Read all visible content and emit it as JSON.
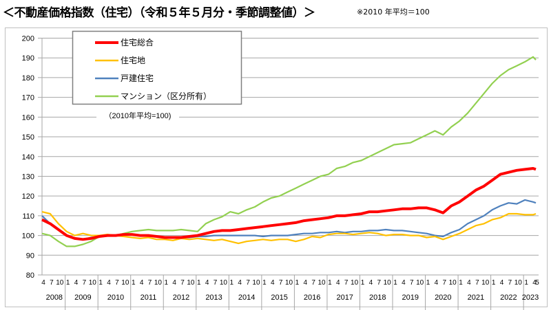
{
  "title": "＜不動産価格指数（住宅）（令和５年５月分・季節調整値）＞",
  "note": "※2010 年平均＝100",
  "chart_data": {
    "type": "line",
    "title": "不動産価格指数（住宅）（令和５年５月分・季節調整値）",
    "annotation": "（2010年平均=100)",
    "xlabel": "",
    "ylabel": "",
    "ylim": [
      80,
      200
    ],
    "yticks": [
      "80",
      "90",
      "100",
      "110",
      "120",
      "130",
      "140",
      "150",
      "160",
      "170",
      "180",
      "190",
      "200"
    ],
    "grid": true,
    "legend_placement": "top-left",
    "x_start": "2008-04",
    "x_end": "2023-05",
    "month_tick_labels": [
      "1",
      "4",
      "7",
      "10"
    ],
    "last_year_month_labels": [
      "1",
      "4",
      "5"
    ],
    "years": [
      "2008",
      "2009",
      "2010",
      "2011",
      "2012",
      "2013",
      "2014",
      "2015",
      "2016",
      "2017",
      "2018",
      "2019",
      "2020",
      "2021",
      "2022",
      "2023"
    ],
    "x": [
      "2008-04",
      "2008-07",
      "2008-10",
      "2009-01",
      "2009-04",
      "2009-07",
      "2009-10",
      "2010-01",
      "2010-04",
      "2010-07",
      "2010-10",
      "2011-01",
      "2011-04",
      "2011-07",
      "2011-10",
      "2012-01",
      "2012-04",
      "2012-07",
      "2012-10",
      "2013-01",
      "2013-04",
      "2013-07",
      "2013-10",
      "2014-01",
      "2014-04",
      "2014-07",
      "2014-10",
      "2015-01",
      "2015-04",
      "2015-07",
      "2015-10",
      "2016-01",
      "2016-04",
      "2016-07",
      "2016-10",
      "2017-01",
      "2017-04",
      "2017-07",
      "2017-10",
      "2018-01",
      "2018-04",
      "2018-07",
      "2018-10",
      "2019-01",
      "2019-04",
      "2019-07",
      "2019-10",
      "2020-01",
      "2020-04",
      "2020-07",
      "2020-10",
      "2021-01",
      "2021-04",
      "2021-07",
      "2021-10",
      "2022-01",
      "2022-04",
      "2022-07",
      "2022-10",
      "2023-01",
      "2023-04",
      "2023-05"
    ],
    "series": [
      {
        "name": "住宅総合",
        "color": "#ff0000",
        "width": 4,
        "values": [
          108,
          106,
          103,
          100,
          98.5,
          98,
          98.5,
          99.5,
          100,
          100,
          100.5,
          100.5,
          100,
          100,
          99.5,
          99,
          99,
          99,
          99.5,
          100,
          101,
          102,
          102.5,
          102.5,
          103,
          103.5,
          104,
          104.5,
          105,
          105.5,
          106,
          106.5,
          107.5,
          108,
          108.5,
          109,
          110,
          110,
          110.5,
          111,
          112,
          112,
          112.5,
          113,
          113.5,
          113.5,
          114,
          114,
          113,
          111.5,
          115,
          117,
          120,
          123,
          125,
          128,
          131,
          132,
          133,
          133.5,
          134,
          133.5
        ]
      },
      {
        "name": "住宅地",
        "color": "#ffc000",
        "width": 2.2,
        "values": [
          112,
          111,
          106,
          102,
          100,
          101,
          100,
          100,
          100.5,
          100,
          99.5,
          99,
          98.5,
          99,
          98,
          98,
          97.5,
          98.5,
          98,
          98.5,
          98,
          97.5,
          98,
          97,
          96,
          97,
          97.5,
          98,
          97.5,
          98,
          98,
          97,
          98,
          99.5,
          99,
          100.5,
          101,
          101,
          100.5,
          101,
          101.5,
          101,
          100,
          100.5,
          100.5,
          100,
          100,
          99,
          99.5,
          98,
          99.5,
          101,
          103,
          105,
          106,
          108,
          109,
          111,
          111,
          110.5,
          110.5,
          111
        ]
      },
      {
        "name": "戸建住宅",
        "color": "#4f81bd",
        "width": 2.2,
        "values": [
          110,
          106,
          103,
          100,
          98.5,
          98,
          99,
          99.5,
          100,
          100,
          100.5,
          100.5,
          100,
          100,
          99.5,
          99,
          99,
          99,
          99,
          99.5,
          99.5,
          100,
          100,
          100,
          100,
          100,
          100,
          99.5,
          100,
          100,
          100,
          100.5,
          101,
          101,
          101.5,
          101.5,
          102,
          101.5,
          102,
          102,
          102.5,
          102.5,
          103,
          102.5,
          102.5,
          102,
          101.5,
          101,
          100,
          99.5,
          101.5,
          103,
          106,
          108,
          110,
          113,
          115,
          116.5,
          116,
          118,
          117,
          116.5
        ]
      },
      {
        "name": "マンション（区分所有）",
        "color": "#92d050",
        "width": 2.2,
        "values": [
          101,
          100,
          97,
          94.5,
          94.5,
          95.5,
          97,
          99.5,
          100,
          100,
          101,
          102,
          102.5,
          103,
          102.5,
          102.5,
          102.5,
          103,
          102.5,
          102,
          106,
          108,
          109.5,
          112,
          111,
          113,
          114.5,
          117,
          119,
          120,
          122,
          124,
          126,
          128,
          130,
          131,
          134,
          135,
          137,
          138,
          140,
          142,
          144,
          146,
          146.5,
          147,
          149,
          151,
          153,
          151,
          155,
          158,
          162,
          167,
          172,
          177,
          181,
          184,
          186,
          188,
          190.5,
          189
        ]
      }
    ]
  }
}
